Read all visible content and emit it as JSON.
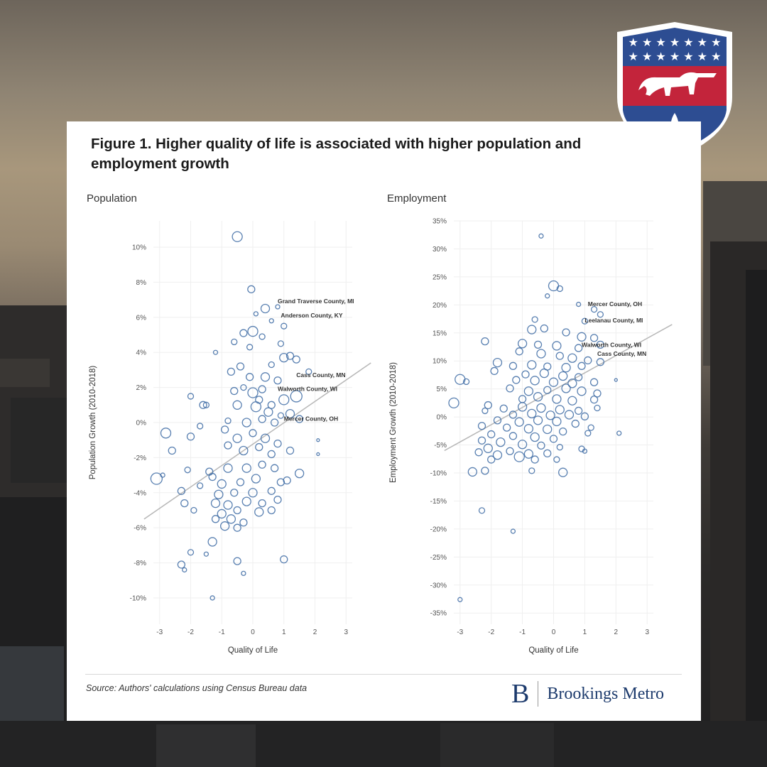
{
  "chart_data": [
    {
      "type": "scatter",
      "panel_title": "Population",
      "xlabel": "Quality of Life",
      "ylabel": "Population Growth (2010-2018)",
      "xlim": [
        -3.2,
        3.2
      ],
      "ylim": [
        -11.5,
        11.5
      ],
      "xticks": [
        -3,
        -2,
        -1,
        0,
        1,
        2,
        3
      ],
      "xtick_labels": [
        "-3",
        "-2",
        "-1",
        "0",
        "1",
        "2",
        "3"
      ],
      "yticks": [
        10,
        8,
        6,
        4,
        2,
        0,
        -2,
        -4,
        -6,
        -8,
        -10
      ],
      "ytick_labels": [
        "10%",
        "8%",
        "6%",
        "4%",
        "2%",
        "0%",
        "-2%",
        "-4%",
        "-6%",
        "-8%",
        "-10%"
      ],
      "trendline": [
        [
          -3.5,
          -5.5
        ],
        [
          3.8,
          3.4
        ]
      ],
      "annotations": [
        {
          "text": "Grand Traverse County, MI",
          "x": 0.8,
          "y": 6.8
        },
        {
          "text": "Anderson County, KY",
          "x": 0.9,
          "y": 6.0
        },
        {
          "text": "Cass County, MN",
          "x": 1.4,
          "y": 2.6
        },
        {
          "text": "Walworth County, WI",
          "x": 0.8,
          "y": 1.8
        },
        {
          "text": "Mercer County, OH",
          "x": 1.0,
          "y": 0.1
        }
      ],
      "points": [
        [
          -0.5,
          10.6,
          7
        ],
        [
          -0.05,
          7.6,
          5
        ],
        [
          0.4,
          6.5,
          6
        ],
        [
          0.8,
          6.6,
          3
        ],
        [
          0.1,
          6.2,
          3
        ],
        [
          1.0,
          5.5,
          4
        ],
        [
          -0.3,
          5.1,
          5
        ],
        [
          0.0,
          5.2,
          7
        ],
        [
          0.6,
          5.8,
          3
        ],
        [
          -0.6,
          4.6,
          4
        ],
        [
          -1.2,
          4.0,
          3
        ],
        [
          0.3,
          4.9,
          4
        ],
        [
          -0.1,
          4.3,
          4
        ],
        [
          0.9,
          4.5,
          4
        ],
        [
          1.0,
          3.7,
          6
        ],
        [
          1.2,
          3.8,
          5
        ],
        [
          1.4,
          3.6,
          5
        ],
        [
          0.6,
          3.3,
          4
        ],
        [
          -0.4,
          3.2,
          5
        ],
        [
          -0.7,
          2.9,
          5
        ],
        [
          -0.1,
          2.6,
          5
        ],
        [
          0.4,
          2.6,
          6
        ],
        [
          0.8,
          2.4,
          5
        ],
        [
          1.8,
          2.9,
          4
        ],
        [
          -2.0,
          1.5,
          4
        ],
        [
          -1.6,
          1.0,
          5
        ],
        [
          -1.5,
          1.0,
          4
        ],
        [
          -0.6,
          1.8,
          5
        ],
        [
          -0.3,
          2.0,
          4
        ],
        [
          0.0,
          1.7,
          7
        ],
        [
          0.3,
          1.9,
          5
        ],
        [
          0.2,
          1.3,
          5
        ],
        [
          0.6,
          1.0,
          5
        ],
        [
          1.0,
          1.3,
          7
        ],
        [
          1.4,
          1.5,
          8
        ],
        [
          -0.5,
          1.0,
          6
        ],
        [
          0.1,
          0.9,
          7
        ],
        [
          0.5,
          0.6,
          6
        ],
        [
          1.2,
          0.5,
          6
        ],
        [
          1.5,
          0.2,
          5
        ],
        [
          -0.8,
          0.1,
          4
        ],
        [
          -0.2,
          0.0,
          6
        ],
        [
          0.3,
          0.2,
          5
        ],
        [
          0.7,
          0.0,
          5
        ],
        [
          0.9,
          0.4,
          4
        ],
        [
          -2.8,
          -0.6,
          7
        ],
        [
          -2.0,
          -0.8,
          5
        ],
        [
          -1.7,
          -0.2,
          4
        ],
        [
          -0.9,
          -0.4,
          5
        ],
        [
          -0.5,
          -0.9,
          6
        ],
        [
          0.0,
          -0.6,
          5
        ],
        [
          0.4,
          -0.9,
          6
        ],
        [
          0.8,
          -1.2,
          5
        ],
        [
          2.1,
          -1.0,
          2
        ],
        [
          -2.6,
          -1.6,
          5
        ],
        [
          -0.8,
          -1.3,
          5
        ],
        [
          -0.3,
          -1.6,
          6
        ],
        [
          0.2,
          -1.4,
          5
        ],
        [
          0.6,
          -1.8,
          5
        ],
        [
          1.2,
          -1.6,
          5
        ],
        [
          2.1,
          -1.8,
          2
        ],
        [
          -2.1,
          -2.7,
          4
        ],
        [
          -1.4,
          -2.8,
          5
        ],
        [
          -0.8,
          -2.6,
          6
        ],
        [
          -0.2,
          -2.6,
          6
        ],
        [
          0.3,
          -2.4,
          5
        ],
        [
          0.7,
          -2.6,
          5
        ],
        [
          1.5,
          -2.9,
          6
        ],
        [
          -2.9,
          -3.0,
          3
        ],
        [
          -3.1,
          -3.2,
          8
        ],
        [
          -1.3,
          -3.1,
          5
        ],
        [
          -1.0,
          -3.5,
          6
        ],
        [
          -0.4,
          -3.4,
          5
        ],
        [
          0.1,
          -3.2,
          6
        ],
        [
          0.9,
          -3.4,
          5
        ],
        [
          1.1,
          -3.3,
          5
        ],
        [
          -2.3,
          -3.9,
          5
        ],
        [
          -1.7,
          -3.6,
          4
        ],
        [
          -1.1,
          -4.1,
          6
        ],
        [
          -0.6,
          -4.0,
          5
        ],
        [
          0.0,
          -4.0,
          6
        ],
        [
          0.6,
          -3.9,
          5
        ],
        [
          -2.2,
          -4.6,
          5
        ],
        [
          -1.2,
          -4.6,
          6
        ],
        [
          -0.8,
          -4.7,
          6
        ],
        [
          -0.2,
          -4.5,
          6
        ],
        [
          0.3,
          -4.6,
          5
        ],
        [
          0.8,
          -4.4,
          5
        ],
        [
          -1.9,
          -5.0,
          4
        ],
        [
          -1.0,
          -5.2,
          6
        ],
        [
          -0.5,
          -5.0,
          5
        ],
        [
          0.2,
          -5.1,
          6
        ],
        [
          0.6,
          -5.0,
          5
        ],
        [
          -1.2,
          -5.5,
          5
        ],
        [
          -0.7,
          -5.5,
          6
        ],
        [
          -0.3,
          -5.7,
          5
        ],
        [
          -0.9,
          -5.9,
          6
        ],
        [
          -0.5,
          -6.0,
          5
        ],
        [
          -1.3,
          -6.8,
          6
        ],
        [
          -2.0,
          -7.4,
          4
        ],
        [
          -1.5,
          -7.5,
          3
        ],
        [
          -2.3,
          -8.1,
          5
        ],
        [
          -2.2,
          -8.4,
          3
        ],
        [
          -0.5,
          -7.9,
          5
        ],
        [
          -0.3,
          -8.6,
          3
        ],
        [
          1.0,
          -7.8,
          5
        ],
        [
          -1.3,
          -10.0,
          3
        ]
      ]
    },
    {
      "type": "scatter",
      "panel_title": "Employment",
      "xlabel": "Quality of Life",
      "ylabel": "Employment Growth (2010-2018)",
      "xlim": [
        -3.2,
        3.2
      ],
      "ylim": [
        -37,
        35
      ],
      "xticks": [
        -3,
        -2,
        -1,
        0,
        1,
        2,
        3
      ],
      "xtick_labels": [
        "-3",
        "-2",
        "-1",
        "0",
        "1",
        "2",
        "3"
      ],
      "yticks": [
        35,
        30,
        25,
        20,
        15,
        10,
        5,
        0,
        -5,
        -10,
        -15,
        -20,
        -25,
        -30,
        -35
      ],
      "ytick_labels": [
        "35%",
        "30%",
        "25%",
        "20%",
        "15%",
        "10%",
        "5%",
        "0%",
        "-5%",
        "-10%",
        "-15%",
        "-20%",
        "-25%",
        "-30%",
        "-35%"
      ],
      "trendline": [
        [
          -3.5,
          -6.0
        ],
        [
          3.8,
          16.5
        ]
      ],
      "annotations": [
        {
          "text": "Mercer County, OH",
          "x": 1.1,
          "y": 19.8
        },
        {
          "text": "Leelanau County, MI",
          "x": 1.0,
          "y": 16.9
        },
        {
          "text": "Walworth County, WI",
          "x": 0.9,
          "y": 12.5
        },
        {
          "text": "Cass County, MN",
          "x": 1.4,
          "y": 10.9
        }
      ],
      "points": [
        [
          -0.4,
          32.3,
          3
        ],
        [
          0.0,
          23.4,
          7
        ],
        [
          0.2,
          22.9,
          4
        ],
        [
          -0.2,
          21.6,
          3
        ],
        [
          0.8,
          20.1,
          3
        ],
        [
          1.3,
          19.2,
          4
        ],
        [
          -0.6,
          17.4,
          4
        ],
        [
          1.5,
          18.3,
          4
        ],
        [
          1.0,
          17.1,
          4
        ],
        [
          -0.7,
          15.6,
          6
        ],
        [
          -0.3,
          15.8,
          5
        ],
        [
          0.4,
          15.1,
          5
        ],
        [
          0.9,
          14.3,
          6
        ],
        [
          1.3,
          14.1,
          5
        ],
        [
          -2.2,
          13.5,
          5
        ],
        [
          -1.0,
          13.1,
          6
        ],
        [
          -0.5,
          12.9,
          5
        ],
        [
          0.1,
          12.7,
          6
        ],
        [
          0.8,
          12.3,
          5
        ],
        [
          1.5,
          12.9,
          5
        ],
        [
          -1.1,
          11.7,
          5
        ],
        [
          -0.4,
          11.3,
          6
        ],
        [
          0.2,
          10.9,
          5
        ],
        [
          0.6,
          10.5,
          6
        ],
        [
          1.1,
          10.1,
          5
        ],
        [
          1.5,
          9.8,
          5
        ],
        [
          -1.8,
          9.7,
          6
        ],
        [
          -1.3,
          9.1,
          5
        ],
        [
          -0.7,
          9.3,
          6
        ],
        [
          -0.2,
          9.0,
          5
        ],
        [
          0.4,
          8.8,
          6
        ],
        [
          0.9,
          9.1,
          5
        ],
        [
          -1.9,
          8.2,
          5
        ],
        [
          -0.9,
          7.6,
          5
        ],
        [
          -0.3,
          7.8,
          6
        ],
        [
          0.3,
          7.3,
          6
        ],
        [
          0.8,
          7.1,
          5
        ],
        [
          -3.0,
          6.7,
          7
        ],
        [
          -2.8,
          6.3,
          4
        ],
        [
          -1.2,
          6.6,
          5
        ],
        [
          -0.6,
          6.5,
          6
        ],
        [
          0.0,
          6.2,
          6
        ],
        [
          0.6,
          6.0,
          6
        ],
        [
          1.3,
          6.2,
          5
        ],
        [
          2.0,
          6.6,
          2
        ],
        [
          -1.4,
          5.1,
          5
        ],
        [
          -0.8,
          4.6,
          6
        ],
        [
          -0.2,
          4.8,
          5
        ],
        [
          0.4,
          5.1,
          6
        ],
        [
          0.9,
          4.6,
          6
        ],
        [
          1.4,
          4.2,
          5
        ],
        [
          -1.0,
          3.2,
          5
        ],
        [
          -0.5,
          3.6,
          6
        ],
        [
          0.1,
          3.2,
          6
        ],
        [
          0.6,
          2.9,
          6
        ],
        [
          1.3,
          3.1,
          5
        ],
        [
          -3.2,
          2.5,
          7
        ],
        [
          -2.1,
          2.1,
          5
        ],
        [
          -1.6,
          1.5,
          5
        ],
        [
          -1.0,
          1.8,
          6
        ],
        [
          -0.4,
          1.6,
          6
        ],
        [
          0.2,
          1.3,
          6
        ],
        [
          0.8,
          1.1,
          5
        ],
        [
          1.4,
          1.6,
          4
        ],
        [
          -2.2,
          1.1,
          4
        ],
        [
          -1.3,
          0.4,
          5
        ],
        [
          -0.7,
          0.6,
          6
        ],
        [
          -0.1,
          0.3,
          6
        ],
        [
          0.5,
          0.4,
          6
        ],
        [
          1.0,
          0.1,
          5
        ],
        [
          -1.8,
          -0.6,
          5
        ],
        [
          -1.1,
          -0.9,
          6
        ],
        [
          -0.5,
          -0.6,
          6
        ],
        [
          0.1,
          -0.8,
          6
        ],
        [
          0.7,
          -1.2,
          5
        ],
        [
          1.2,
          -1.9,
          4
        ],
        [
          -2.3,
          -1.6,
          5
        ],
        [
          -1.5,
          -1.9,
          5
        ],
        [
          -0.8,
          -2.1,
          6
        ],
        [
          -0.2,
          -2.2,
          6
        ],
        [
          0.3,
          -2.6,
          5
        ],
        [
          1.1,
          -2.9,
          4
        ],
        [
          -2.0,
          -3.1,
          5
        ],
        [
          -1.3,
          -3.4,
          5
        ],
        [
          -0.6,
          -3.6,
          6
        ],
        [
          0.0,
          -3.9,
          5
        ],
        [
          2.1,
          -2.9,
          3
        ],
        [
          -2.3,
          -4.2,
          5
        ],
        [
          -1.7,
          -4.5,
          6
        ],
        [
          -1.0,
          -4.9,
          6
        ],
        [
          -0.4,
          -5.1,
          5
        ],
        [
          0.2,
          -5.4,
          4
        ],
        [
          -2.1,
          -5.6,
          6
        ],
        [
          -1.4,
          -6.1,
          5
        ],
        [
          -0.8,
          -6.6,
          6
        ],
        [
          -0.2,
          -6.5,
          5
        ],
        [
          0.9,
          -5.7,
          4
        ],
        [
          -2.4,
          -6.3,
          5
        ],
        [
          -1.8,
          -6.8,
          6
        ],
        [
          -1.1,
          -7.1,
          7
        ],
        [
          -0.6,
          -7.6,
          5
        ],
        [
          0.1,
          -7.6,
          4
        ],
        [
          1.0,
          -6.1,
          3
        ],
        [
          -2.0,
          -7.6,
          5
        ],
        [
          -2.2,
          -9.6,
          5
        ],
        [
          -2.6,
          -9.8,
          6
        ],
        [
          -0.7,
          -9.6,
          4
        ],
        [
          0.3,
          -9.9,
          6
        ],
        [
          -2.3,
          -16.7,
          4
        ],
        [
          -1.3,
          -20.4,
          3
        ],
        [
          -3.0,
          -32.6,
          3
        ]
      ]
    }
  ],
  "card": {
    "title": "Figure 1. Higher quality of life is associated with higher population and employment growth",
    "panel1_label": "Population",
    "panel2_label": "Employment",
    "source": "Source: Authors' calculations using Census Bureau data",
    "brand_mark": "B",
    "brand_name": "Brookings Metro"
  },
  "colors": {
    "point_stroke": "#3c6aa3",
    "trend": "#b7b7b7",
    "grid": "#efefef",
    "brand": "#1d3b6d",
    "shield_blue": "#2d4d92",
    "shield_red": "#c3243b"
  }
}
